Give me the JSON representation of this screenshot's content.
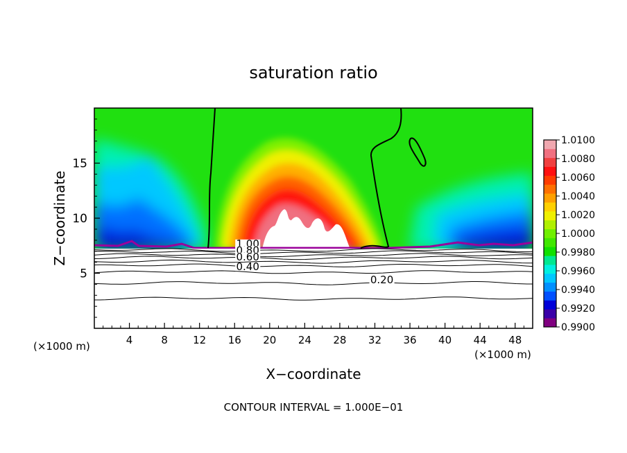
{
  "chart_data": {
    "type": "heatmap",
    "title": "saturation ratio",
    "xlabel": "X−coordinate",
    "ylabel": "Z−coordinate",
    "x_unit_left": "(×1000 m)",
    "x_unit_right": "(×1000 m)",
    "footer": "CONTOUR INTERVAL = 1.000E−01",
    "xlim": [
      0,
      50
    ],
    "ylim": [
      0,
      20
    ],
    "x_ticks": [
      4,
      8,
      12,
      16,
      20,
      24,
      28,
      32,
      36,
      40,
      44,
      48
    ],
    "x_tick_labels": [
      "4",
      "8",
      "12",
      "16",
      "20",
      "24",
      "28",
      "32",
      "36",
      "40",
      "44",
      "48"
    ],
    "y_ticks": [
      5,
      10,
      15
    ],
    "y_tick_labels": [
      "5",
      "10",
      "15"
    ],
    "colorbar": {
      "min": 0.99,
      "max": 1.01,
      "labels": [
        "1.0100",
        "1.0080",
        "1.0060",
        "1.0040",
        "1.0020",
        "1.0000",
        "0.9980",
        "0.9960",
        "0.9940",
        "0.9920",
        "0.9900"
      ],
      "colors": [
        "#800080",
        "#3a00a8",
        "#0000d8",
        "#0050ff",
        "#0090ff",
        "#00c8ff",
        "#00f0e0",
        "#00e890",
        "#10e000",
        "#40e800",
        "#70f000",
        "#b0f000",
        "#f0f000",
        "#ffd000",
        "#ffa000",
        "#ff7000",
        "#ff3c00",
        "#ff1010",
        "#f04040",
        "#f07080",
        "#f0a8b0"
      ]
    },
    "contour_labels": [
      {
        "text": "1.00",
        "x": 17.5,
        "z": 7.5
      },
      {
        "text": "0.80",
        "x": 17.5,
        "z": 6.9
      },
      {
        "text": "0.60",
        "x": 17.5,
        "z": 6.3
      },
      {
        "text": "0.40",
        "x": 17.5,
        "z": 5.4
      },
      {
        "text": "0.20",
        "x": 32.8,
        "z": 4.2
      }
    ],
    "contour_levels": [
      {
        "value": 0.2,
        "z": 4.1
      },
      {
        "value": 0.1,
        "z": 2.7
      },
      {
        "value": 0.3,
        "z": 5.1
      },
      {
        "value": 0.4,
        "z": 5.7
      },
      {
        "value": 0.5,
        "z": 6.05
      },
      {
        "value": 0.6,
        "z": 6.4
      },
      {
        "value": 0.7,
        "z": 6.65
      },
      {
        "value": 0.8,
        "z": 6.9
      },
      {
        "value": 0.9,
        "z": 7.1
      }
    ],
    "cloud_base_z": 7.4
  }
}
